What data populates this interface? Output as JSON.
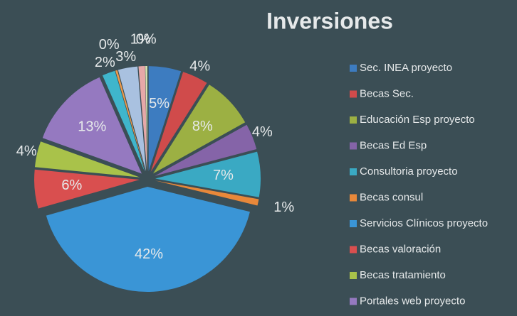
{
  "chart_data": {
    "type": "pie",
    "title": "Inversiones",
    "categories": [
      "Sec. INEA proyecto",
      "Becas Sec.",
      "Educación Esp proyecto",
      "Becas Ed Esp",
      "Consultoria proyecto",
      "Becas consul",
      "Servicios Clínicos proyecto",
      "Becas valoración",
      "Becas tratamiento",
      "Portales web proyecto",
      null,
      null,
      null,
      null,
      null
    ],
    "values": [
      5,
      4,
      8,
      4,
      7,
      1,
      42,
      6,
      4,
      13,
      2,
      0.3,
      3,
      1,
      0.3
    ],
    "value_labels": [
      "5%",
      "4%",
      "8%",
      "4%",
      "7%",
      "1%",
      "42%",
      "6%",
      "4%",
      "13%",
      "2%",
      "0%",
      "3%",
      "1%",
      "0%"
    ],
    "colors": [
      "#3d7cc0",
      "#d04b4b",
      "#9cb043",
      "#8564a8",
      "#3aa9c3",
      "#e8883a",
      "#3a95d6",
      "#d94f4f",
      "#a9c24a",
      "#9579c0",
      "#3fb6cc",
      "#f09a4a",
      "#a9c1e0",
      "#e6a8a8",
      "#d7e4b0"
    ],
    "legend": "right"
  }
}
